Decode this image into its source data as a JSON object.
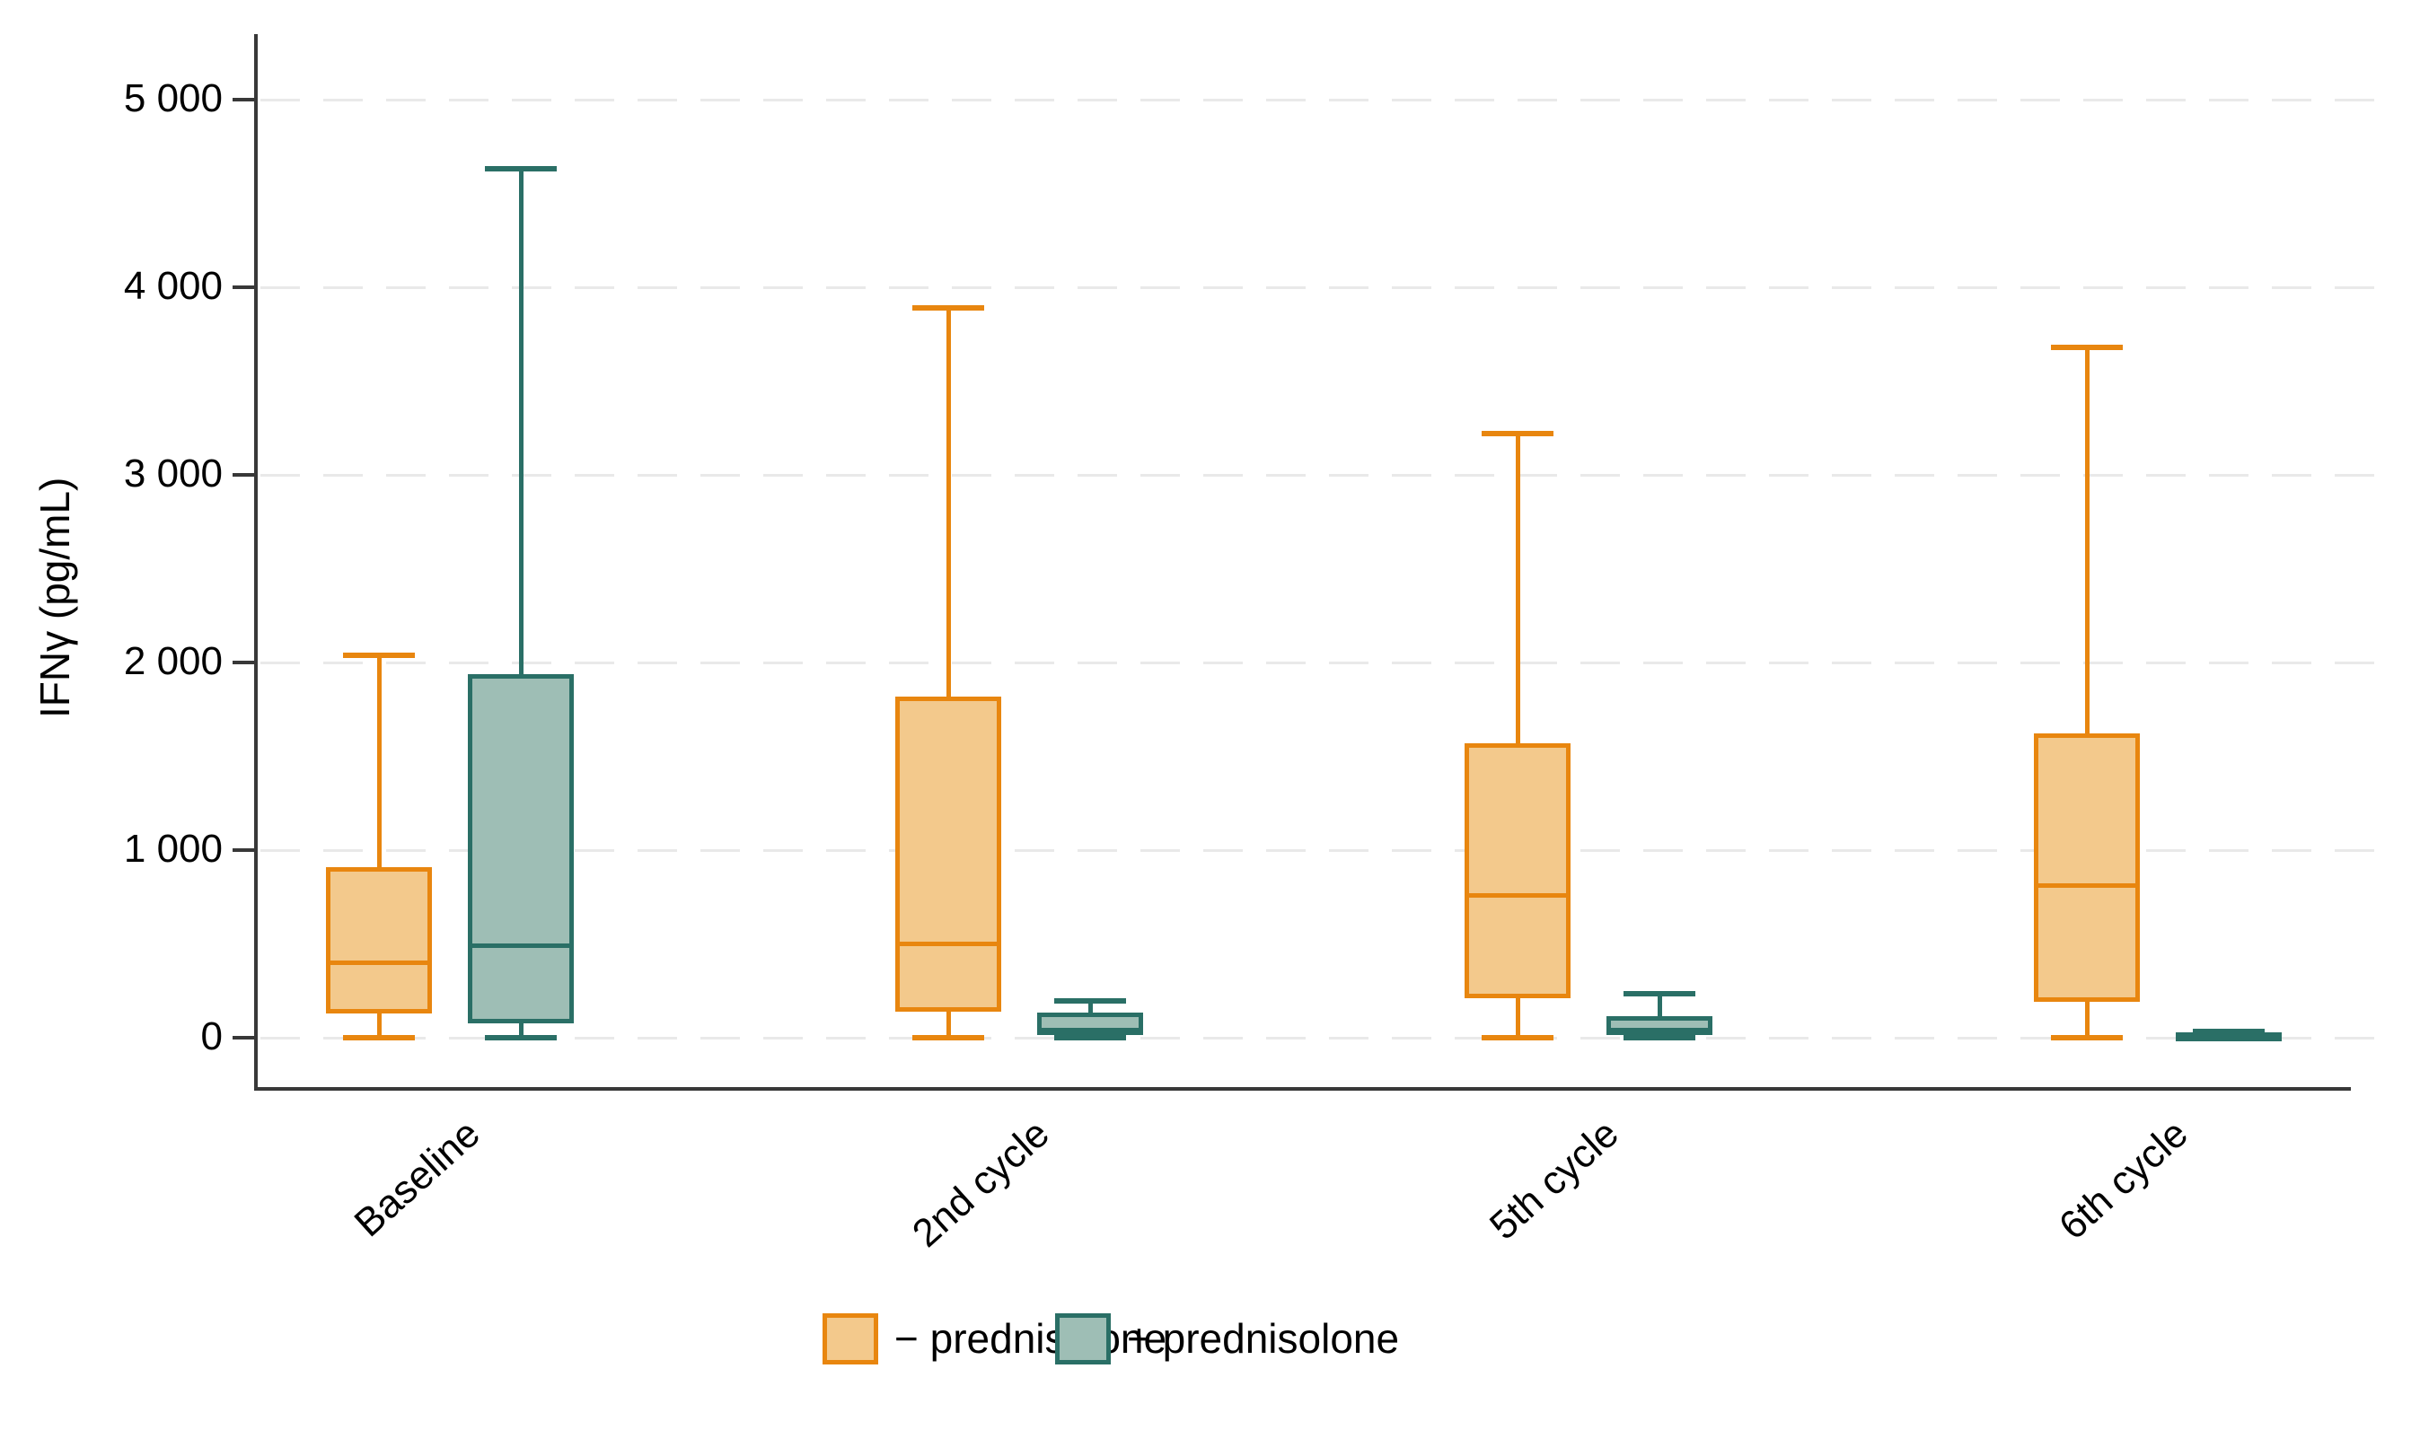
{
  "chart_data": {
    "type": "boxplot",
    "title": "",
    "ylabel": "IFNγ (pg/mL)",
    "xlabel": "",
    "ylim": [
      0,
      5000
    ],
    "grid": "horizontal-dashed",
    "yticks": [
      {
        "value": 0,
        "label": "0"
      },
      {
        "value": 1000,
        "label": "1 000"
      },
      {
        "value": 2000,
        "label": "2 000"
      },
      {
        "value": 3000,
        "label": "3 000"
      },
      {
        "value": 4000,
        "label": "4 000"
      },
      {
        "value": 5000,
        "label": "5 000"
      }
    ],
    "categories": [
      "Baseline",
      "2nd cycle",
      "5th cycle",
      "6th cycle"
    ],
    "legend_position": "bottom",
    "series": [
      {
        "name": "− prednisolone",
        "stroke": "#e8860f",
        "fill": "#f3c98c",
        "boxes": [
          {
            "category": "Baseline",
            "min": 0,
            "q1": 130,
            "median": 400,
            "q3": 910,
            "max": 2040
          },
          {
            "category": "2nd cycle",
            "min": 0,
            "q1": 140,
            "median": 500,
            "q3": 1820,
            "max": 3890
          },
          {
            "category": "5th cycle",
            "min": 0,
            "q1": 210,
            "median": 760,
            "q3": 1570,
            "max": 3220
          },
          {
            "category": "6th cycle",
            "min": 0,
            "q1": 190,
            "median": 810,
            "q3": 1620,
            "max": 3680
          }
        ]
      },
      {
        "name": "+ prednisolone",
        "stroke": "#2a6f66",
        "fill": "#9ebeb5",
        "boxes": [
          {
            "category": "Baseline",
            "min": 0,
            "q1": 75,
            "median": 490,
            "q3": 1940,
            "max": 4630
          },
          {
            "category": "2nd cycle",
            "min": 0,
            "q1": 15,
            "median": 40,
            "q3": 135,
            "max": 195
          },
          {
            "category": "5th cycle",
            "min": 0,
            "q1": 15,
            "median": 40,
            "q3": 115,
            "max": 235
          },
          {
            "category": "6th cycle",
            "min": 0,
            "q1": 2,
            "median": 8,
            "q3": 30,
            "max": 35
          }
        ]
      }
    ]
  }
}
